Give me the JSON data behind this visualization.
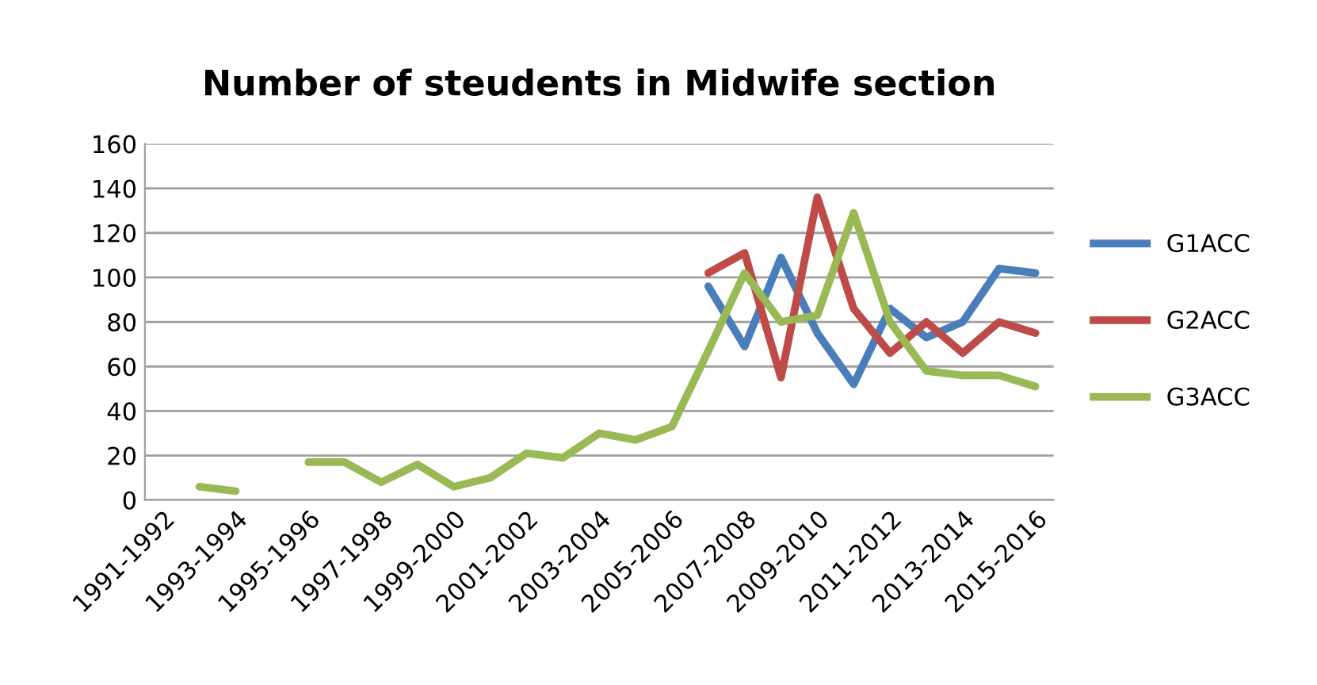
{
  "chart_data": {
    "type": "line",
    "title": "Number of steudents in Midwife section",
    "categories": [
      "1991-1992",
      null,
      "1993-1994",
      null,
      "1995-1996",
      null,
      "1997-1998",
      null,
      "1999-2000",
      null,
      "2001-2002",
      null,
      "2003-2004",
      null,
      "2005-2006",
      null,
      "2007-2008",
      null,
      "2009-2010",
      null,
      "2011-2012",
      null,
      "2013-2014",
      null,
      "2015-2016"
    ],
    "series": [
      {
        "name": "G1ACC",
        "color": "#4a7ebb",
        "values": [
          null,
          null,
          null,
          null,
          null,
          null,
          null,
          null,
          null,
          null,
          null,
          null,
          null,
          null,
          null,
          96,
          69,
          109,
          75,
          52,
          86,
          73,
          80,
          104,
          102
        ]
      },
      {
        "name": "G2ACC",
        "color": "#be4b48",
        "values": [
          null,
          null,
          null,
          null,
          null,
          null,
          null,
          null,
          null,
          null,
          null,
          null,
          null,
          null,
          null,
          102,
          111,
          55,
          136,
          86,
          66,
          80,
          66,
          80,
          75
        ]
      },
      {
        "name": "G3ACC",
        "color": "#98b954",
        "values": [
          null,
          6,
          4,
          null,
          17,
          17,
          8,
          16,
          6,
          10,
          21,
          19,
          30,
          27,
          33,
          67,
          102,
          80,
          83,
          129,
          80,
          58,
          56,
          56,
          51
        ]
      }
    ],
    "ylim": [
      0,
      160
    ],
    "yticks": [
      0,
      20,
      40,
      60,
      80,
      100,
      120,
      140,
      160
    ],
    "grid": "y",
    "legend": "right",
    "marker": "none",
    "line_style": "solid"
  }
}
